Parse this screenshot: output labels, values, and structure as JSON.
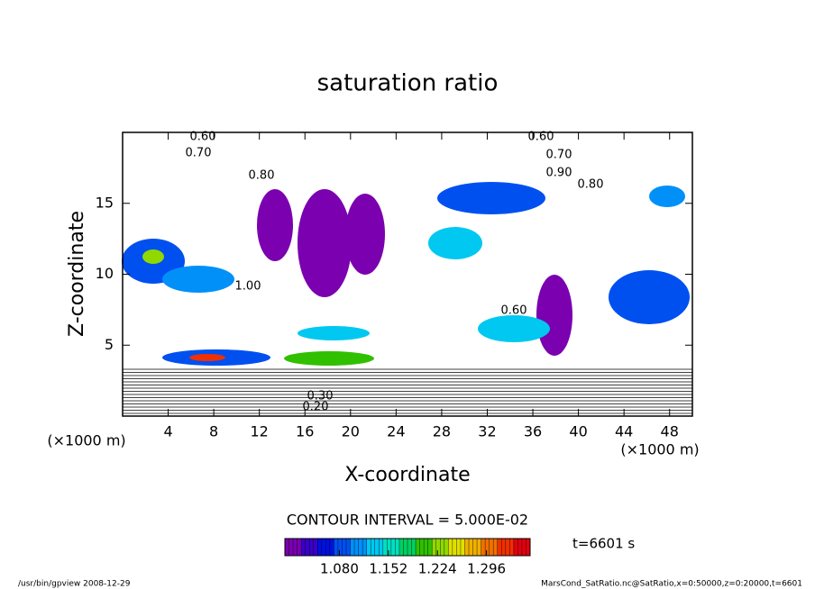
{
  "chart_data": {
    "type": "contour",
    "title": "saturation ratio",
    "xlabel": "X-coordinate",
    "ylabel": "Z-coordinate",
    "xunit": "(×1000 m)",
    "xlim": [
      0,
      50
    ],
    "xticks": [
      4,
      8,
      12,
      16,
      20,
      24,
      28,
      32,
      36,
      40,
      44,
      48
    ],
    "ylim": [
      0,
      20
    ],
    "yticks": [
      5,
      10,
      15
    ],
    "contour_interval": "CONTOUR INTERVAL = 5.000E-02",
    "contour_labels": [
      "0.60",
      "0.70",
      "0.60",
      "0.70",
      "0.80",
      "0.90",
      "0.80",
      "1.00",
      "0.60",
      "0.20",
      "0.30"
    ],
    "colorbar": {
      "lim": [
        1.0,
        1.36
      ],
      "ticks": [
        {
          "value": 1.08,
          "label": "1.080"
        },
        {
          "value": 1.152,
          "label": "1.152"
        },
        {
          "value": 1.224,
          "label": "1.224"
        },
        {
          "value": 1.296,
          "label": "1.296"
        }
      ],
      "colors": [
        "#7a00b0",
        "#3a00c8",
        "#0010e0",
        "#0050f0",
        "#0090f8",
        "#00c8f0",
        "#00e0c0",
        "#00d060",
        "#30c000",
        "#90d800",
        "#e0e000",
        "#f0b000",
        "#f07000",
        "#f03000",
        "#e00010"
      ]
    },
    "time": "t=6601 s",
    "footer_left": "/usr/bin/gpview   2008-12-29",
    "footer_right": "MarsCond_SatRatio.nc@SatRatio,x=0:50000,z=0:20000,t=6601"
  }
}
